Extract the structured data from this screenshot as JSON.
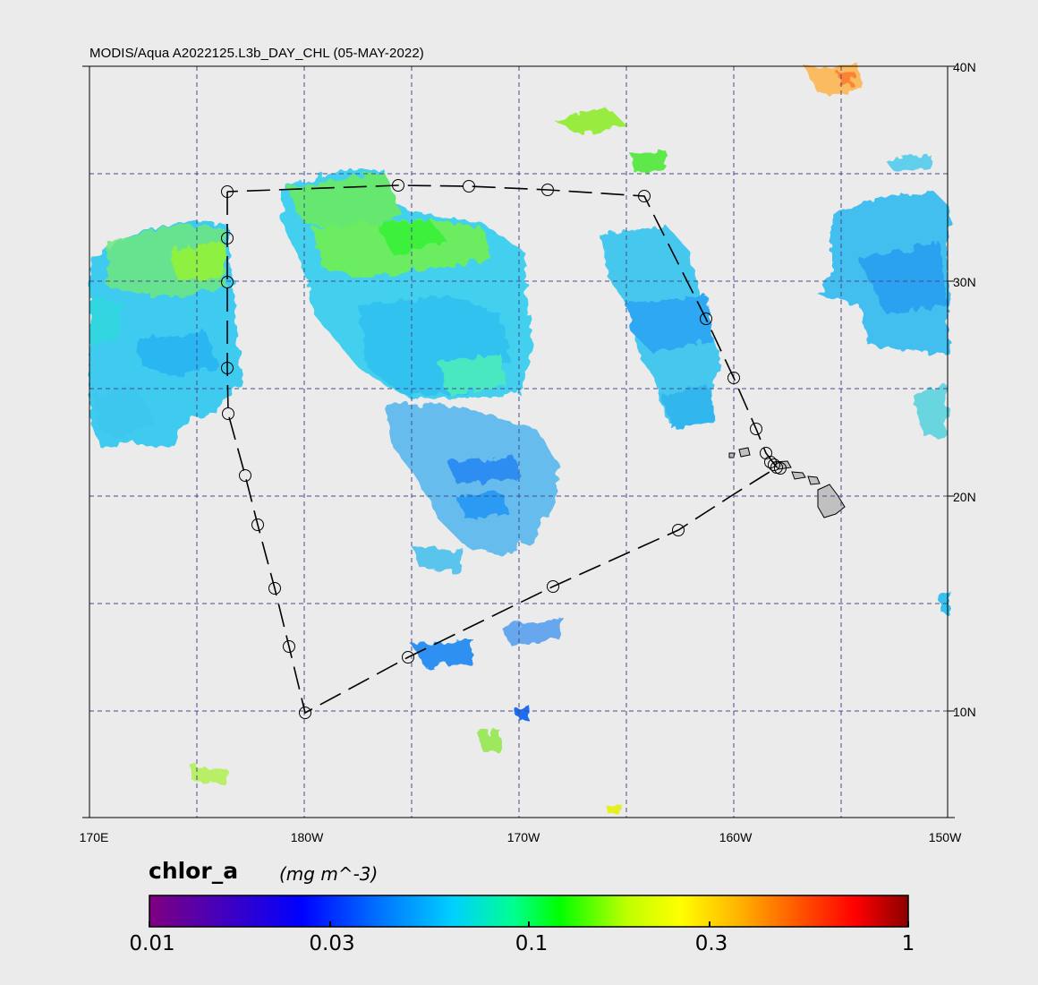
{
  "map_title": "MODIS/Aqua A2022125.L3b_DAY_CHL (05-MAY-2022)",
  "longitude_labels": [
    "170E",
    "180W",
    "170W",
    "160W",
    "150W"
  ],
  "latitude_labels": [
    "40N",
    "30N",
    "20N",
    "10N"
  ],
  "colorbar": {
    "variable": "chlor_a",
    "units": "(mg m^-3)",
    "tick_labels": [
      "0.01",
      "0.03",
      "0.1",
      "0.3",
      "1"
    ],
    "scale": "log",
    "colors": [
      "#7f007f",
      "#4000c0",
      "#0000ff",
      "#0070ff",
      "#00d0ff",
      "#00ff90",
      "#00ff00",
      "#c0ff00",
      "#ffff00",
      "#ffb000",
      "#ff5000",
      "#ff0000",
      "#8b0000"
    ]
  },
  "style": {
    "background": "#ebebeb",
    "gridline_color": "#4a4a8c",
    "land_color": "#c0c0c0"
  }
}
